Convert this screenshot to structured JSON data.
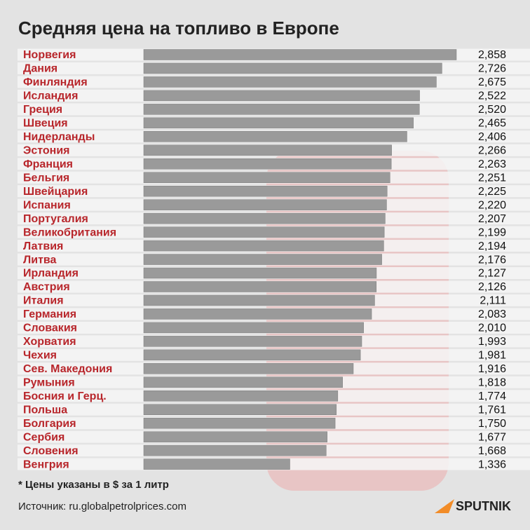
{
  "chart_data": {
    "type": "bar",
    "title": "Средняя цена на топливо в Европе",
    "categories": [
      "Норвегия",
      "Дания",
      "Финляндия",
      "Исландия",
      "Греция",
      "Швеция",
      "Нидерланды",
      "Эстония",
      "Франция",
      "Бельгия",
      "Швейцария",
      "Испания",
      "Португалия",
      "Великобритания",
      "Латвия",
      "Литва",
      "Ирландия",
      "Австрия",
      "Италия",
      "Германия",
      "Словакия",
      "Хорватия",
      "Чехия",
      "Сев. Македония",
      "Румыния",
      "Босния и Герц.",
      "Польша",
      "Болгария",
      "Сербия",
      "Словения",
      "Венгрия"
    ],
    "values": [
      2.858,
      2.726,
      2.675,
      2.522,
      2.52,
      2.465,
      2.406,
      2.266,
      2.263,
      2.251,
      2.225,
      2.22,
      2.207,
      2.199,
      2.194,
      2.176,
      2.127,
      2.126,
      2.111,
      2.083,
      2.01,
      1.993,
      1.981,
      1.916,
      1.818,
      1.774,
      1.761,
      1.75,
      1.677,
      1.668,
      1.336
    ],
    "value_labels": [
      "2,858",
      "2,726",
      "2,675",
      "2,522",
      "2,520",
      "2,465",
      "2,406",
      "2,266",
      "2,263",
      "2,251",
      "2,225",
      "2,220",
      "2,207",
      "2,199",
      "2,194",
      "2,176",
      "2,127",
      "2,126",
      "2,111",
      "2,083",
      "2,010",
      "1,993",
      "1,981",
      "1,916",
      "1,818",
      "1,774",
      "1,761",
      "1,750",
      "1,677",
      "1,668",
      "1,336"
    ],
    "color": "#9a9a9a",
    "note": "* Цены указаны в $ за 1 литр",
    "source": "Источник: ru.globalpetrolprices.com",
    "logo": "SPUTNIK"
  }
}
